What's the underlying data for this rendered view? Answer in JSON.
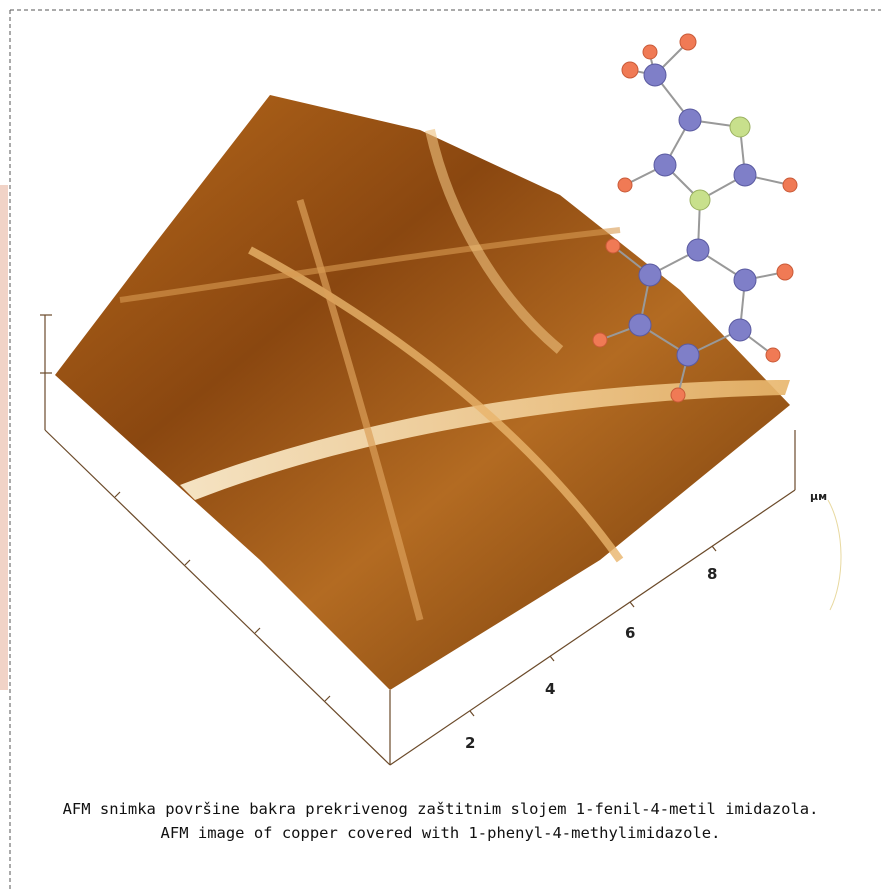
{
  "figure": {
    "axis_labels": [
      "2",
      "4",
      "6",
      "8"
    ],
    "unit": "μм"
  },
  "caption": {
    "lines": [
      "AFM snimka površine bakra prekrivenog zaštitnim slojem 1-fenil-4-metil imidazola.",
      "AFM image of copper covered with 1-phenyl-4-methylimidazole."
    ]
  }
}
